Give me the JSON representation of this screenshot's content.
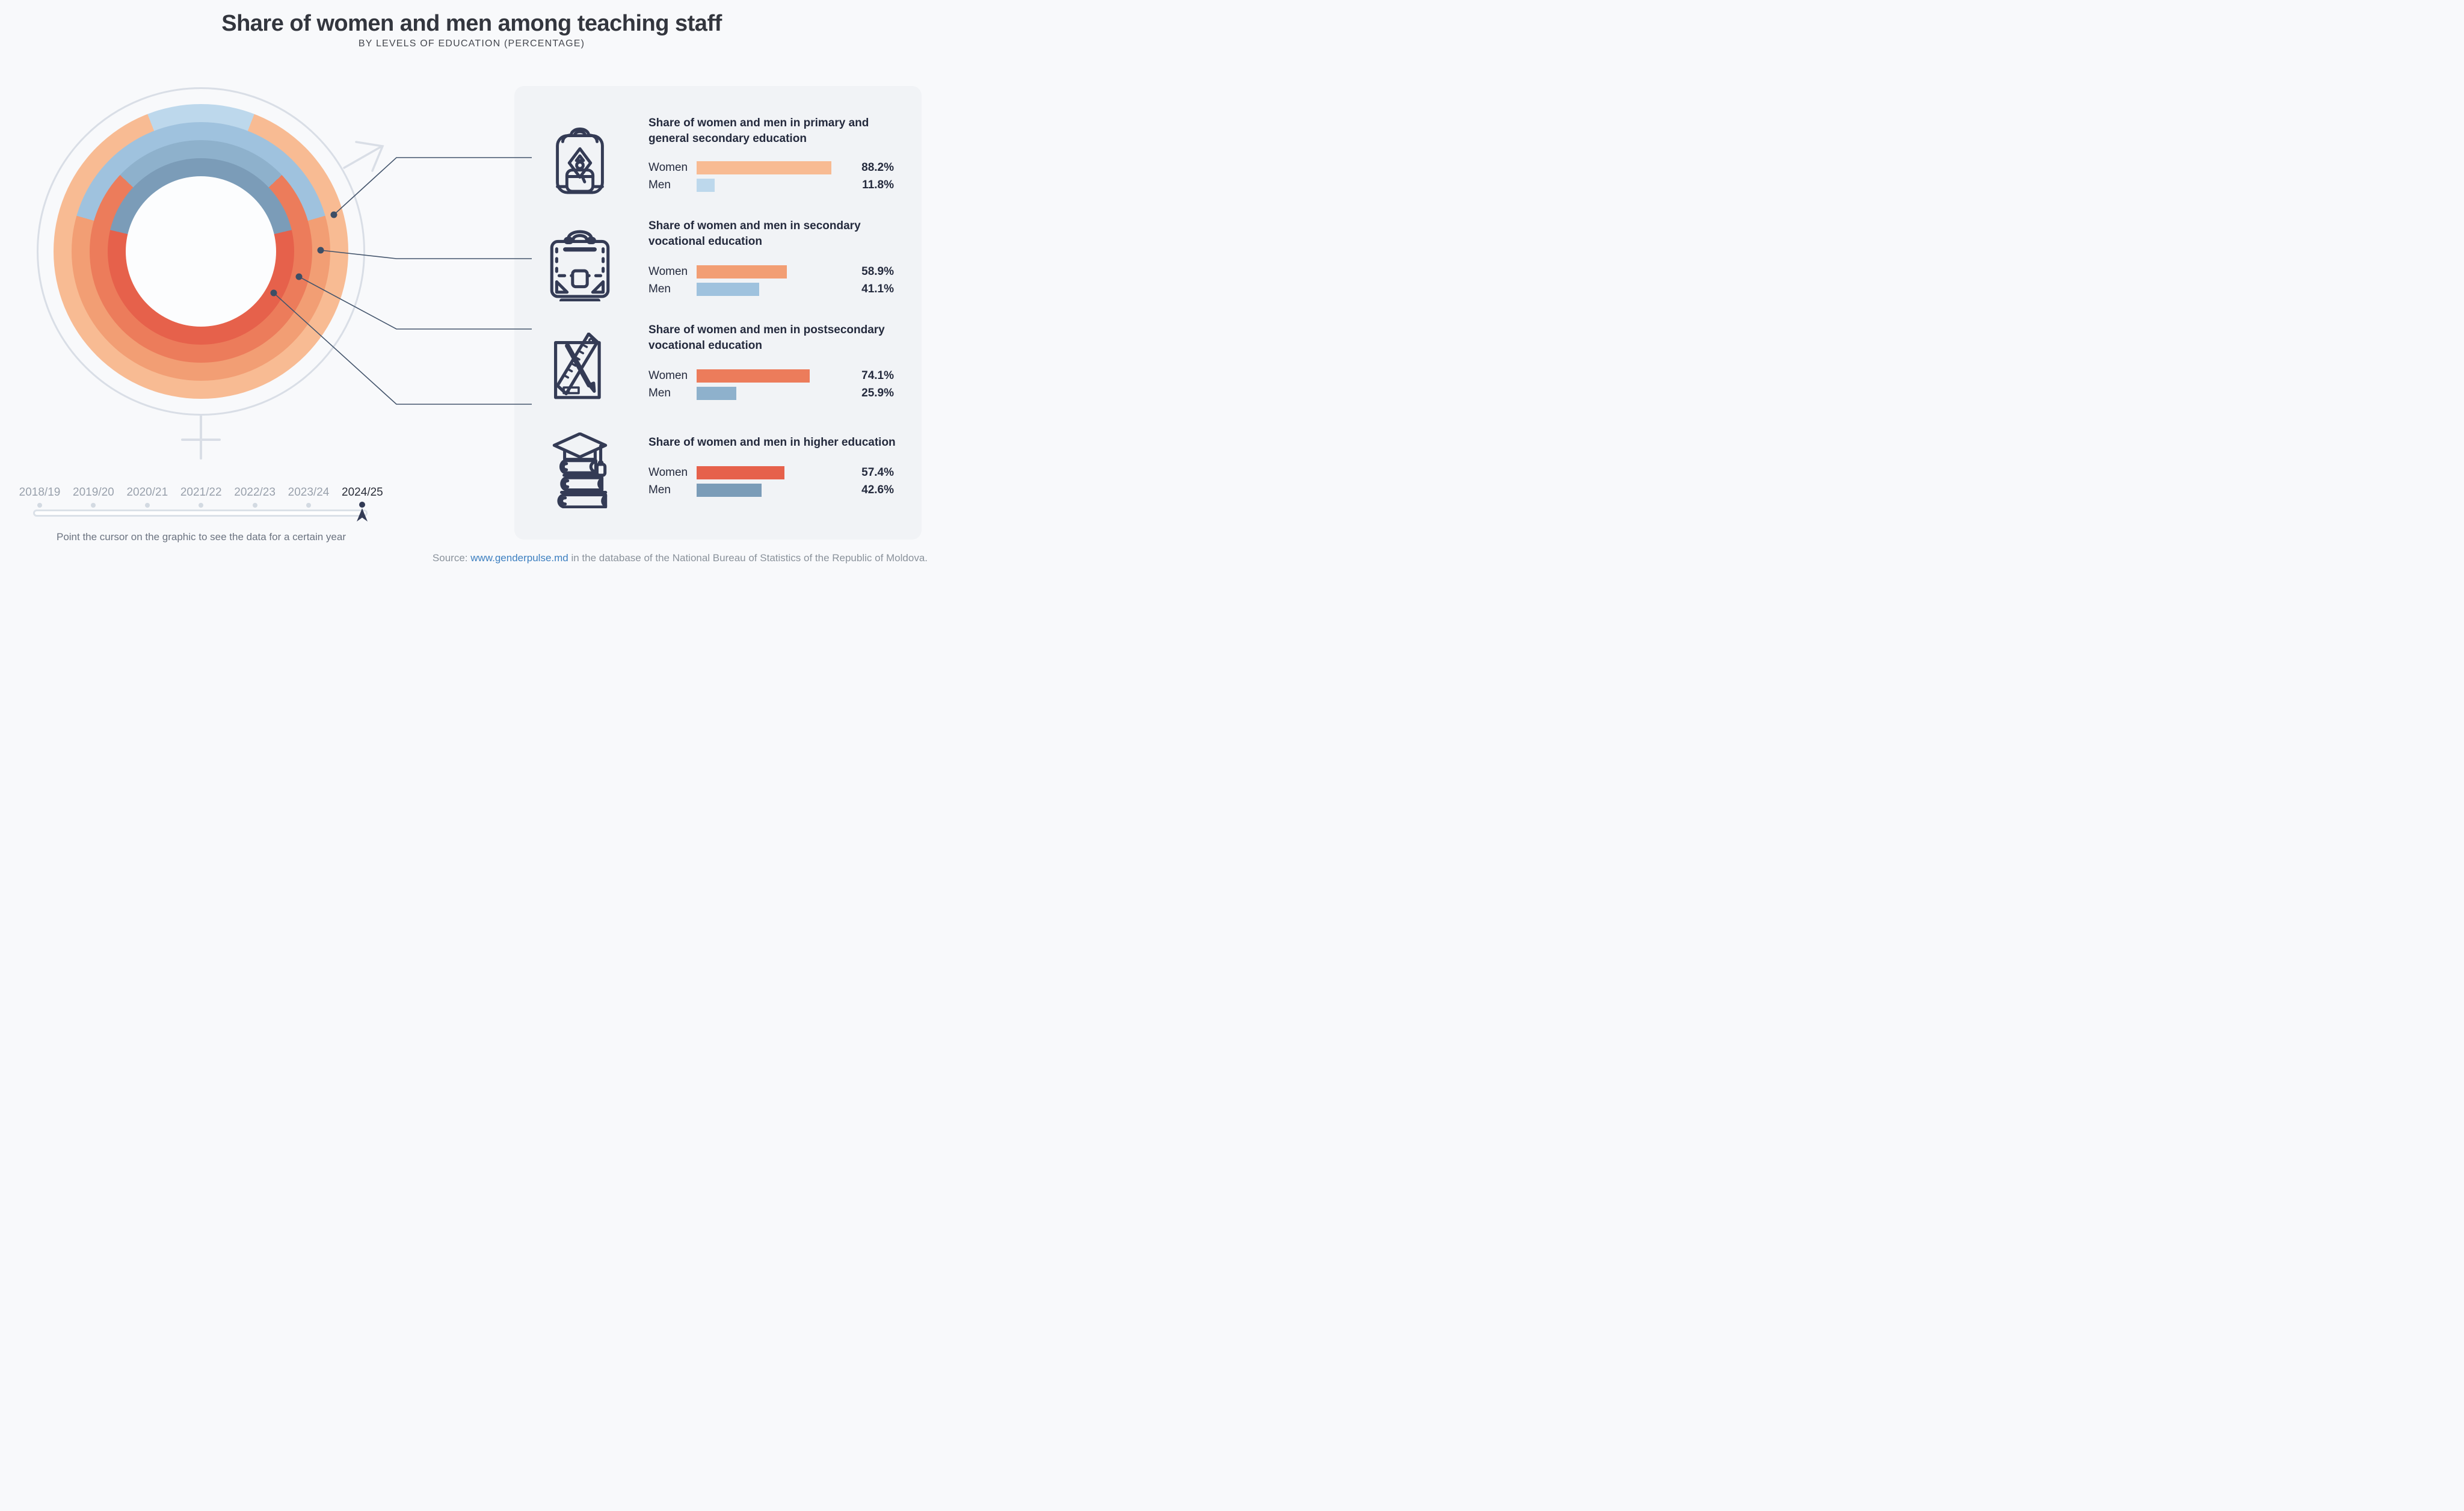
{
  "title": "Share of women and men among teaching staff",
  "subtitle": "BY LEVELS OF EDUCATION (PERCENTAGE)",
  "labels": {
    "women": "Women",
    "men": "Men"
  },
  "colors": {
    "page_bg": "#F8F9FB",
    "panel_bg": "#F1F3F6",
    "hole": "#FCFDFE",
    "connector": "#44556C",
    "symbol_gray": "#D9DEE6",
    "icon_stroke": "#343B55",
    "timeline_inactive": "#99A1AC",
    "timeline_active": "#2A2E39",
    "link_blue": "#3C7FC0"
  },
  "chart_data": {
    "type": "donut-multi-ring",
    "title": "Share of women and men among teaching staff",
    "subtitle": "BY LEVELS OF EDUCATION (PERCENTAGE)",
    "selected_year": "2024/25",
    "rings_order": "outer ring = primary/general secondary, inner ring = higher education; men share drawn as blue arc centered at 12 o'clock, women share orange remainder",
    "levels": [
      {
        "key": "primary-general-secondary",
        "icon": "backpack-icon",
        "title": "Share of women and men in primary and\ngeneral secondary education",
        "women_pct": 88.2,
        "men_pct": 11.8,
        "women_label": "88.2%",
        "men_label": "11.8%",
        "women_color": "#F8BB93",
        "men_color": "#BDD8EC"
      },
      {
        "key": "secondary-vocational",
        "icon": "briefcase-icon",
        "title": "Share of women and men in secondary\nvocational education",
        "women_pct": 58.9,
        "men_pct": 41.1,
        "women_label": "58.9%",
        "men_label": "41.1%",
        "women_color": "#F29E74",
        "men_color": "#9FC2DE"
      },
      {
        "key": "postsecondary-vocational",
        "icon": "pencil-ruler-icon",
        "title": "Share of women and men in postsecondary\nvocational education",
        "women_pct": 74.1,
        "men_pct": 25.9,
        "women_label": "74.1%",
        "men_label": "25.9%",
        "women_color": "#EC7C5B",
        "men_color": "#8EB1CC"
      },
      {
        "key": "higher-education",
        "icon": "graduation-books-icon",
        "title": "Share of women and men in higher education",
        "women_pct": 57.4,
        "men_pct": 42.6,
        "women_label": "57.4%",
        "men_label": "42.6%",
        "women_color": "#E6614B",
        "men_color": "#7B9CB8"
      }
    ]
  },
  "timeline": {
    "years": [
      "2018/19",
      "2019/20",
      "2020/21",
      "2021/22",
      "2022/23",
      "2023/24",
      "2024/25"
    ],
    "active_year": "2024/25",
    "active_index": 6,
    "hint": "Point the cursor on the graphic to see the data for a certain year"
  },
  "source": {
    "prefix": "Source: ",
    "link": "www.genderpulse.md",
    "suffix": " in the database of the National Bureau of Statistics of the Republic of Moldova."
  }
}
